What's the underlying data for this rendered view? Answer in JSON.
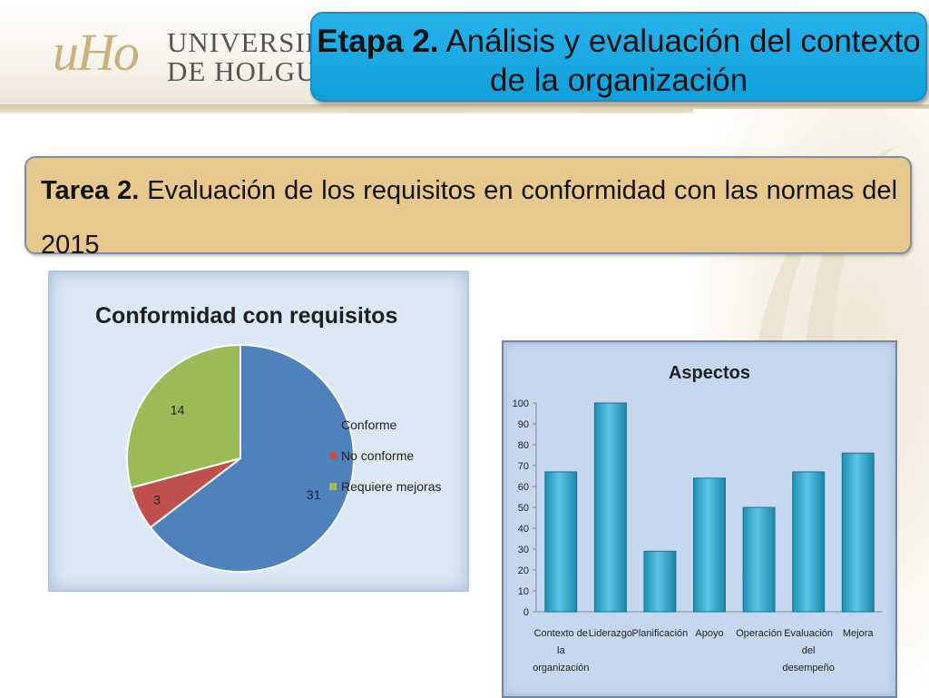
{
  "header": {
    "logo_mark": "uHo",
    "logo_line1": "UNIVERSIDAD",
    "logo_line2": "DE HOLGUÍN",
    "title_bold": "Etapa 2.",
    "title_rest": " Análisis y evaluación del contexto de la organización"
  },
  "task": {
    "bold": "Tarea 2.",
    "text": " Evaluación de los requisitos en conformidad con las normas del 2015"
  },
  "colors": {
    "title_bg": "#1ea8e2",
    "task_bg": "#e8c98d",
    "pie_conforme": "#4f81bd",
    "pie_no_conforme": "#c0504d",
    "pie_requiere": "#9bbb59",
    "bar_fill": "#3fb2d6"
  },
  "chart_data": [
    {
      "type": "pie",
      "title": "Conformidad con requisitos",
      "legend_position": "right",
      "slices": [
        {
          "label": "Conforme",
          "value": 31,
          "color": "#4f81bd"
        },
        {
          "label": "No conforme",
          "value": 3,
          "color": "#c0504d"
        },
        {
          "label": "Requiere mejoras",
          "value": 14,
          "color": "#9bbb59"
        }
      ]
    },
    {
      "type": "bar",
      "title": "Aspectos",
      "categories": [
        "Contexto de la organización",
        "Liderazgo",
        "Planificación",
        "Apoyo",
        "Operación",
        "Evaluación del desempeño",
        "Mejora"
      ],
      "category_lines": [
        [
          "Contexto de",
          "la",
          "organización"
        ],
        [
          "Liderazgo"
        ],
        [
          "Planificación"
        ],
        [
          "Apoyo"
        ],
        [
          "Operación"
        ],
        [
          "Evaluación",
          "del",
          "desempeño"
        ],
        [
          "Mejora"
        ]
      ],
      "values": [
        67,
        100,
        29,
        64,
        50,
        67,
        76
      ],
      "ylim": [
        0,
        100
      ],
      "yticks": [
        0,
        10,
        20,
        30,
        40,
        50,
        60,
        70,
        80,
        90,
        100
      ],
      "grid": false
    }
  ]
}
